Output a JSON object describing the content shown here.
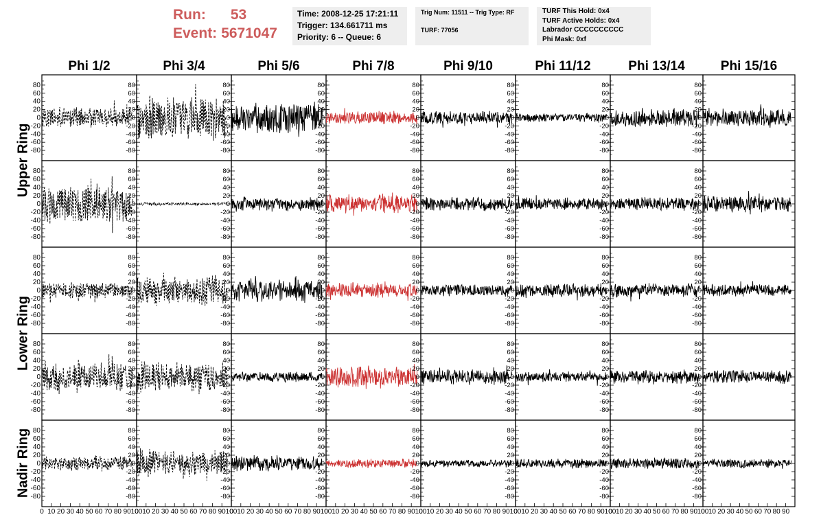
{
  "header": {
    "run_label": "Run:",
    "run_value": "53",
    "event_label": "Event:",
    "event_value": "5671047",
    "time_line": "Time: 2008-12-25 17:21:11",
    "trigger_line": "Trigger: 134.661711 ms",
    "priority_line": "Priority: 6 -- Queue: 6",
    "trig_line": "Trig Num: 11511 -- Trig Type: RF",
    "turf_line": "TURF: 77056",
    "turf_this_hold": "TURF This Hold: 0x4",
    "turf_active_holds": "TURF Active Holds: 0x4",
    "labrador": "Labrador CCCCCCCCCC",
    "phi_mask": "Phi Mask: 0xf"
  },
  "colors": {
    "trace": "#000000",
    "highlight_trace": "#cc3333",
    "header_accent": "#cd5c5c",
    "info_background": "#eeeeee"
  },
  "chart_data": {
    "type": "line",
    "columns": [
      "Phi 1/2",
      "Phi 3/4",
      "Phi 5/6",
      "Phi 7/8",
      "Phi 9/10",
      "Phi 11/12",
      "Phi 13/14",
      "Phi 15/16"
    ],
    "rows": [
      "Upper Ring",
      "",
      "Lower Ring",
      "",
      "Nadir Ring"
    ],
    "highlighted_column": "Phi 7/8",
    "dashed_columns": [
      "Phi 1/2",
      "Phi 3/4"
    ],
    "xlim": [
      0,
      100
    ],
    "ylim": [
      -95,
      95
    ],
    "x_ticks": [
      0,
      10,
      20,
      30,
      40,
      50,
      60,
      70,
      80,
      90,
      100
    ],
    "x_tick_labels": [
      "0",
      "10",
      "20",
      "30",
      "40",
      "50",
      "60",
      "70",
      "80",
      "90",
      "100"
    ],
    "x_tick_labels_last_col": [
      "0",
      "10",
      "20",
      "30",
      "40",
      "50",
      "60",
      "70",
      "80",
      "90"
    ],
    "y_ticks": [
      -80,
      -60,
      -40,
      -20,
      0,
      20,
      40,
      60,
      80
    ],
    "y_tick_labels": [
      "-80",
      "-60",
      "-40",
      "-20",
      "0",
      "20",
      "40",
      "60",
      "80"
    ],
    "trace_x_range": [
      0,
      96
    ],
    "trace_amplitudes": [
      [
        28,
        60,
        40,
        18,
        18,
        12,
        25,
        25
      ],
      [
        50,
        4,
        18,
        26,
        18,
        16,
        18,
        22
      ],
      [
        22,
        40,
        30,
        20,
        16,
        18,
        18,
        16
      ],
      [
        40,
        40,
        14,
        28,
        20,
        14,
        18,
        18
      ],
      [
        20,
        35,
        20,
        12,
        10,
        12,
        14,
        12
      ]
    ]
  }
}
